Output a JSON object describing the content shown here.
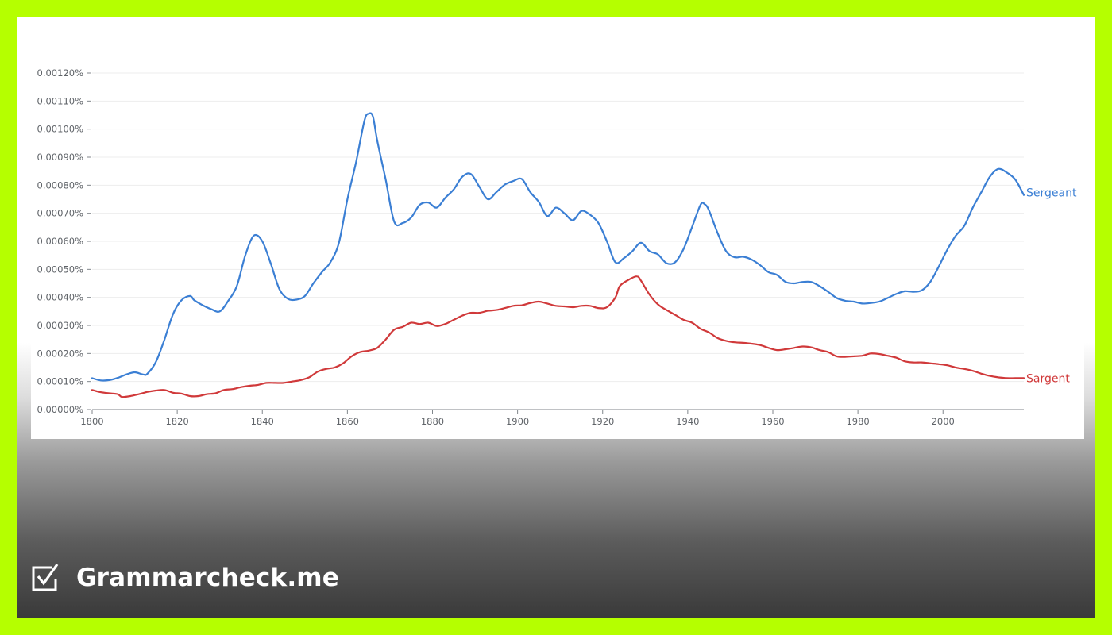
{
  "brand": {
    "name": "Grammarcheck.me",
    "icon": "checkbox-check-icon",
    "text_color": "#ffffff"
  },
  "background": {
    "border_color": "#b5ff00"
  },
  "chart_data": {
    "type": "line",
    "title": "",
    "xlabel": "",
    "ylabel": "",
    "xlim": [
      1800,
      2019
    ],
    "ylim": [
      0,
      0.0012
    ],
    "x_ticks": [
      1800,
      1820,
      1840,
      1860,
      1880,
      1900,
      1920,
      1940,
      1960,
      1980,
      2000
    ],
    "y_ticks": [
      {
        "value": 0.0,
        "label": "0.00000%"
      },
      {
        "value": 0.0001,
        "label": "0.00010%"
      },
      {
        "value": 0.0002,
        "label": "0.00020%"
      },
      {
        "value": 0.0003,
        "label": "0.00030%"
      },
      {
        "value": 0.0004,
        "label": "0.00040%"
      },
      {
        "value": 0.0005,
        "label": "0.00050%"
      },
      {
        "value": 0.0006,
        "label": "0.00060%"
      },
      {
        "value": 0.0007,
        "label": "0.00070%"
      },
      {
        "value": 0.0008,
        "label": "0.00080%"
      },
      {
        "value": 0.0009,
        "label": "0.00090%"
      },
      {
        "value": 0.001,
        "label": "0.00100%"
      },
      {
        "value": 0.0011,
        "label": "0.00110%"
      },
      {
        "value": 0.0012,
        "label": "0.00120%"
      }
    ],
    "grid": true,
    "legend": "end-of-line labels",
    "series": [
      {
        "name": "Sergeant",
        "color": "#3b7fd4",
        "points": [
          [
            1800,
            0.000112
          ],
          [
            1802,
            0.000104
          ],
          [
            1804,
            0.000105
          ],
          [
            1806,
            0.000113
          ],
          [
            1808,
            0.000125
          ],
          [
            1810,
            0.000133
          ],
          [
            1812,
            0.000125
          ],
          [
            1813,
            0.000128
          ],
          [
            1815,
            0.00017
          ],
          [
            1817,
            0.00025
          ],
          [
            1819,
            0.00034
          ],
          [
            1821,
            0.00039
          ],
          [
            1823,
            0.000405
          ],
          [
            1824,
            0.00039
          ],
          [
            1826,
            0.000372
          ],
          [
            1828,
            0.000358
          ],
          [
            1830,
            0.00035
          ],
          [
            1832,
            0.000388
          ],
          [
            1834,
            0.00044
          ],
          [
            1836,
            0.00055
          ],
          [
            1838,
            0.00062
          ],
          [
            1840,
            0.0006
          ],
          [
            1842,
            0.00052
          ],
          [
            1844,
            0.00043
          ],
          [
            1846,
            0.000395
          ],
          [
            1848,
            0.000392
          ],
          [
            1850,
            0.000405
          ],
          [
            1852,
            0.00045
          ],
          [
            1854,
            0.00049
          ],
          [
            1856,
            0.000525
          ],
          [
            1858,
            0.000595
          ],
          [
            1860,
            0.00075
          ],
          [
            1862,
            0.00088
          ],
          [
            1864,
            0.00103
          ],
          [
            1865,
            0.001055
          ],
          [
            1866,
            0.001045
          ],
          [
            1867,
            0.00096
          ],
          [
            1869,
            0.00082
          ],
          [
            1871,
            0.00067
          ],
          [
            1873,
            0.000665
          ],
          [
            1875,
            0.000685
          ],
          [
            1877,
            0.00073
          ],
          [
            1879,
            0.000738
          ],
          [
            1881,
            0.00072
          ],
          [
            1883,
            0.000755
          ],
          [
            1885,
            0.000785
          ],
          [
            1887,
            0.00083
          ],
          [
            1889,
            0.00084
          ],
          [
            1891,
            0.000795
          ],
          [
            1893,
            0.00075
          ],
          [
            1895,
            0.000775
          ],
          [
            1897,
            0.000802
          ],
          [
            1899,
            0.000815
          ],
          [
            1901,
            0.000822
          ],
          [
            1903,
            0.000775
          ],
          [
            1905,
            0.00074
          ],
          [
            1907,
            0.00069
          ],
          [
            1909,
            0.00072
          ],
          [
            1911,
            0.0007
          ],
          [
            1913,
            0.000675
          ],
          [
            1915,
            0.000708
          ],
          [
            1917,
            0.000695
          ],
          [
            1919,
            0.000665
          ],
          [
            1921,
            0.0006
          ],
          [
            1923,
            0.000525
          ],
          [
            1925,
            0.00054
          ],
          [
            1927,
            0.000565
          ],
          [
            1929,
            0.000595
          ],
          [
            1931,
            0.000565
          ],
          [
            1933,
            0.000553
          ],
          [
            1935,
            0.000522
          ],
          [
            1937,
            0.000525
          ],
          [
            1939,
            0.000572
          ],
          [
            1941,
            0.00065
          ],
          [
            1943,
            0.00073
          ],
          [
            1944,
            0.000732
          ],
          [
            1945,
            0.00071
          ],
          [
            1947,
            0.00063
          ],
          [
            1949,
            0.000565
          ],
          [
            1951,
            0.000543
          ],
          [
            1953,
            0.000545
          ],
          [
            1955,
            0.000535
          ],
          [
            1957,
            0.000515
          ],
          [
            1959,
            0.00049
          ],
          [
            1961,
            0.00048
          ],
          [
            1963,
            0.000455
          ],
          [
            1965,
            0.00045
          ],
          [
            1967,
            0.000455
          ],
          [
            1969,
            0.000455
          ],
          [
            1971,
            0.00044
          ],
          [
            1973,
            0.00042
          ],
          [
            1975,
            0.000398
          ],
          [
            1977,
            0.000388
          ],
          [
            1979,
            0.000385
          ],
          [
            1981,
            0.000378
          ],
          [
            1983,
            0.00038
          ],
          [
            1985,
            0.000385
          ],
          [
            1987,
            0.000398
          ],
          [
            1989,
            0.000412
          ],
          [
            1991,
            0.000422
          ],
          [
            1993,
            0.00042
          ],
          [
            1995,
            0.000425
          ],
          [
            1997,
            0.000455
          ],
          [
            1999,
            0.00051
          ],
          [
            2001,
            0.00057
          ],
          [
            2003,
            0.00062
          ],
          [
            2005,
            0.000655
          ],
          [
            2007,
            0.00072
          ],
          [
            2009,
            0.000775
          ],
          [
            2011,
            0.00083
          ],
          [
            2013,
            0.000858
          ],
          [
            2015,
            0.000845
          ],
          [
            2017,
            0.00082
          ],
          [
            2019,
            0.000765
          ]
        ]
      },
      {
        "name": "Sargent",
        "color": "#d0393a",
        "points": [
          [
            1800,
            7e-05
          ],
          [
            1802,
            6.2e-05
          ],
          [
            1804,
            5.8e-05
          ],
          [
            1806,
            5.5e-05
          ],
          [
            1807,
            4.5e-05
          ],
          [
            1809,
            4.8e-05
          ],
          [
            1811,
            5.5e-05
          ],
          [
            1813,
            6.3e-05
          ],
          [
            1815,
            6.8e-05
          ],
          [
            1817,
            7e-05
          ],
          [
            1819,
            6e-05
          ],
          [
            1821,
            5.7e-05
          ],
          [
            1823,
            4.8e-05
          ],
          [
            1825,
            4.8e-05
          ],
          [
            1827,
            5.5e-05
          ],
          [
            1829,
            5.8e-05
          ],
          [
            1831,
            7e-05
          ],
          [
            1833,
            7.3e-05
          ],
          [
            1835,
            8e-05
          ],
          [
            1837,
            8.5e-05
          ],
          [
            1839,
            8.8e-05
          ],
          [
            1841,
            9.5e-05
          ],
          [
            1843,
            9.5e-05
          ],
          [
            1845,
            9.5e-05
          ],
          [
            1847,
            0.0001
          ],
          [
            1849,
            0.000105
          ],
          [
            1851,
            0.000115
          ],
          [
            1853,
            0.000135
          ],
          [
            1855,
            0.000145
          ],
          [
            1857,
            0.00015
          ],
          [
            1859,
            0.000165
          ],
          [
            1861,
            0.00019
          ],
          [
            1863,
            0.000205
          ],
          [
            1865,
            0.00021
          ],
          [
            1867,
            0.00022
          ],
          [
            1869,
            0.00025
          ],
          [
            1871,
            0.000285
          ],
          [
            1873,
            0.000295
          ],
          [
            1875,
            0.00031
          ],
          [
            1877,
            0.000305
          ],
          [
            1879,
            0.00031
          ],
          [
            1881,
            0.000298
          ],
          [
            1883,
            0.000305
          ],
          [
            1885,
            0.00032
          ],
          [
            1887,
            0.000335
          ],
          [
            1889,
            0.000345
          ],
          [
            1891,
            0.000345
          ],
          [
            1893,
            0.000352
          ],
          [
            1895,
            0.000355
          ],
          [
            1897,
            0.000362
          ],
          [
            1899,
            0.00037
          ],
          [
            1901,
            0.000372
          ],
          [
            1903,
            0.00038
          ],
          [
            1905,
            0.000385
          ],
          [
            1907,
            0.000378
          ],
          [
            1909,
            0.00037
          ],
          [
            1911,
            0.000368
          ],
          [
            1913,
            0.000365
          ],
          [
            1915,
            0.00037
          ],
          [
            1917,
            0.00037
          ],
          [
            1919,
            0.000362
          ],
          [
            1921,
            0.000365
          ],
          [
            1923,
            0.0004
          ],
          [
            1924,
            0.00044
          ],
          [
            1926,
            0.000462
          ],
          [
            1928,
            0.000475
          ],
          [
            1929,
            0.00046
          ],
          [
            1931,
            0.00041
          ],
          [
            1933,
            0.000375
          ],
          [
            1935,
            0.000355
          ],
          [
            1937,
            0.000338
          ],
          [
            1939,
            0.00032
          ],
          [
            1941,
            0.00031
          ],
          [
            1943,
            0.000288
          ],
          [
            1945,
            0.000275
          ],
          [
            1947,
            0.000255
          ],
          [
            1949,
            0.000245
          ],
          [
            1951,
            0.00024
          ],
          [
            1953,
            0.000238
          ],
          [
            1955,
            0.000235
          ],
          [
            1957,
            0.00023
          ],
          [
            1959,
            0.00022
          ],
          [
            1961,
            0.000212
          ],
          [
            1963,
            0.000215
          ],
          [
            1965,
            0.00022
          ],
          [
            1967,
            0.000225
          ],
          [
            1969,
            0.000222
          ],
          [
            1971,
            0.000212
          ],
          [
            1973,
            0.000205
          ],
          [
            1975,
            0.00019
          ],
          [
            1977,
            0.000188
          ],
          [
            1979,
            0.00019
          ],
          [
            1981,
            0.000192
          ],
          [
            1983,
            0.0002
          ],
          [
            1985,
            0.000198
          ],
          [
            1987,
            0.000192
          ],
          [
            1989,
            0.000185
          ],
          [
            1991,
            0.000172
          ],
          [
            1993,
            0.000168
          ],
          [
            1995,
            0.000168
          ],
          [
            1997,
            0.000165
          ],
          [
            1999,
            0.000162
          ],
          [
            2001,
            0.000158
          ],
          [
            2003,
            0.00015
          ],
          [
            2005,
            0.000145
          ],
          [
            2007,
            0.000138
          ],
          [
            2009,
            0.000128
          ],
          [
            2011,
            0.00012
          ],
          [
            2013,
            0.000115
          ],
          [
            2015,
            0.000112
          ],
          [
            2017,
            0.000112
          ],
          [
            2019,
            0.000112
          ]
        ]
      }
    ]
  }
}
